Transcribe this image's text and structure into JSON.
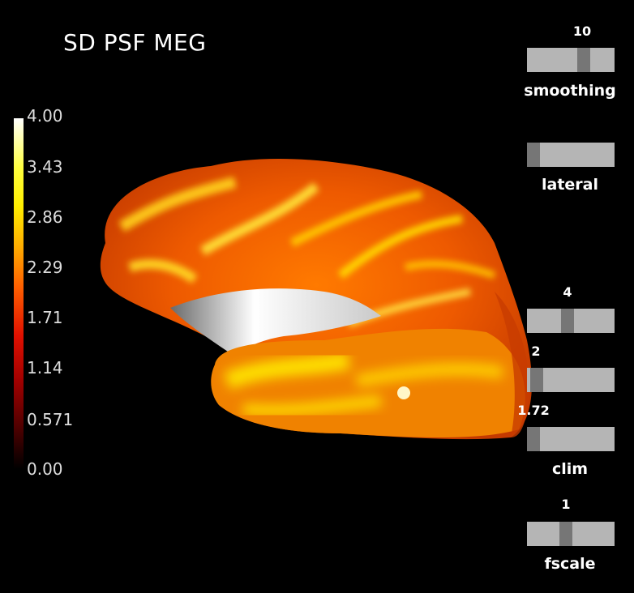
{
  "title": "SD PSF MEG",
  "colorbar": {
    "ticks": [
      "4.00",
      "3.43",
      "2.86",
      "2.29",
      "1.71",
      "1.14",
      "0.571",
      "0.00"
    ]
  },
  "sliders": {
    "smoothing": {
      "label": "smoothing",
      "value": "10"
    },
    "lateral": {
      "label": "lateral"
    },
    "clim_fmid": {
      "value": "4"
    },
    "clim_fmax": {
      "value": "2"
    },
    "clim_fmin": {
      "value": "1.72",
      "label": "clim"
    },
    "fscale": {
      "label": "fscale",
      "value": "1"
    }
  }
}
